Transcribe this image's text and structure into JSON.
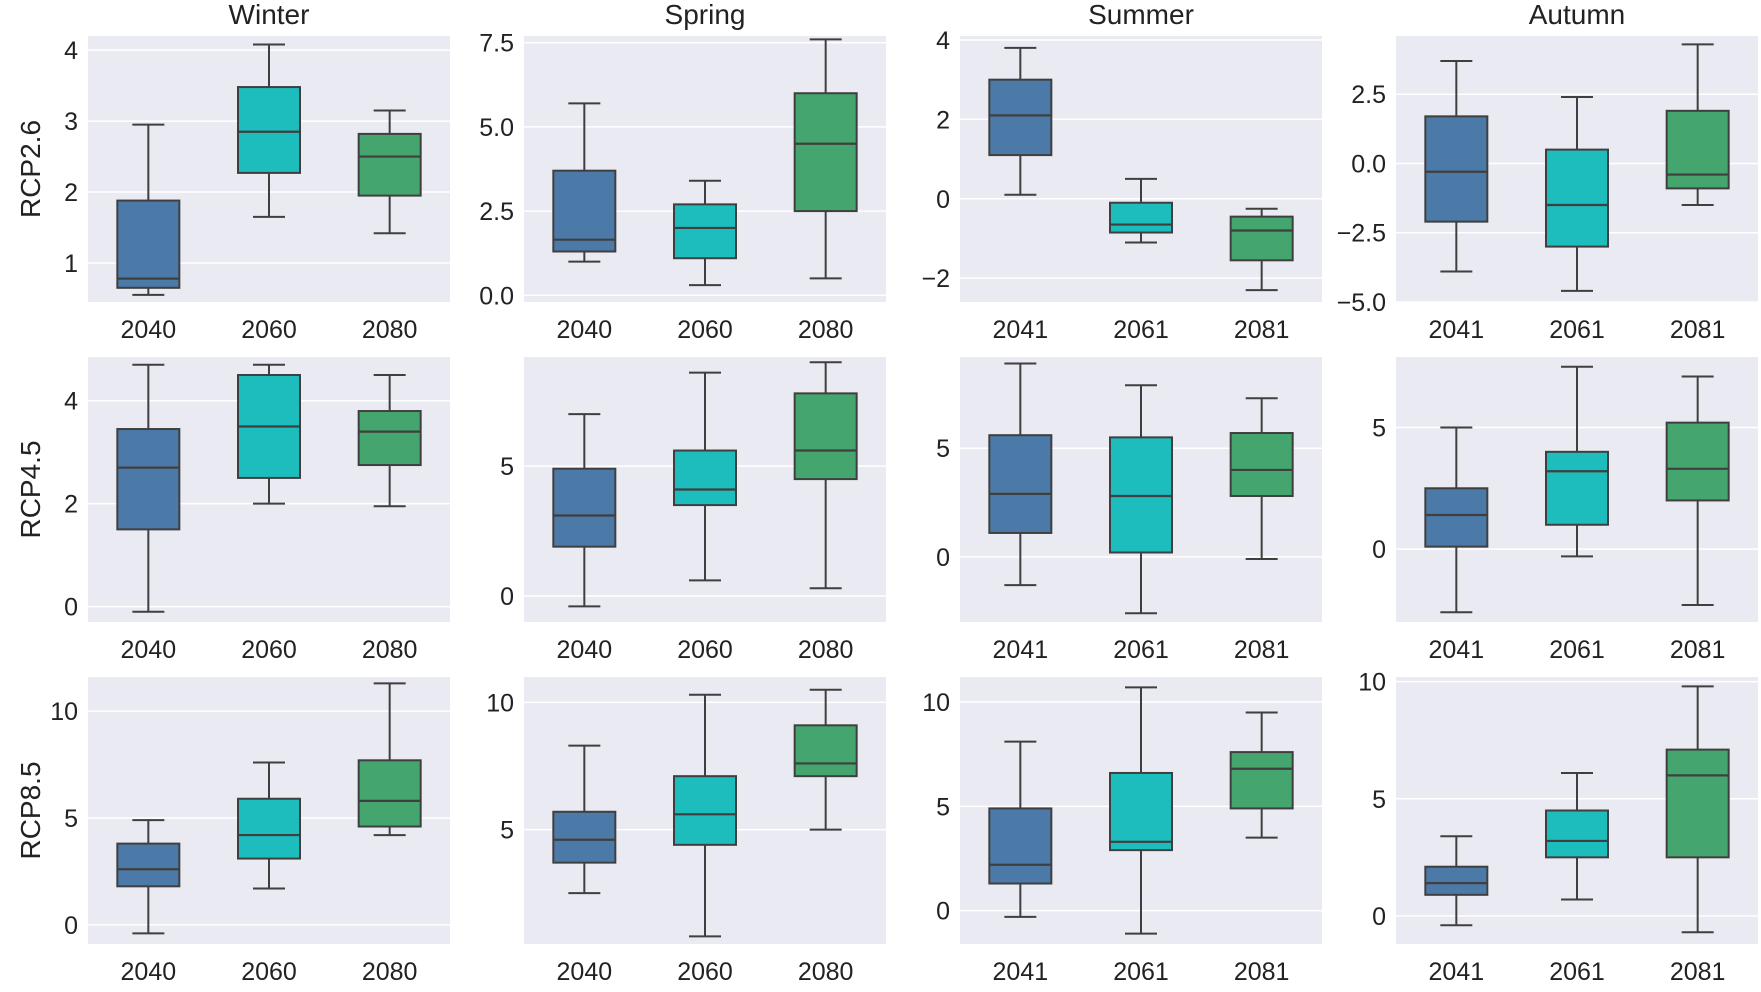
{
  "chart_data": {
    "type": "box",
    "columns": [
      "Winter",
      "Spring",
      "Summer",
      "Autumn"
    ],
    "rows": [
      "RCP2.6",
      "RCP4.5",
      "RCP8.5"
    ],
    "colors": [
      "#4c7aa8",
      "#1dbdbd",
      "#44a56e"
    ],
    "background": "#eaeaf2",
    "grid": true,
    "panels": [
      {
        "row": 0,
        "col": 0,
        "ylim": [
          0.45,
          4.2
        ],
        "yticks": [
          1,
          2,
          3,
          4
        ],
        "categories": [
          "2040",
          "2060",
          "2080"
        ],
        "boxes": [
          [
            0.55,
            0.65,
            0.78,
            1.88,
            2.95
          ],
          [
            1.65,
            2.27,
            2.85,
            3.48,
            4.08
          ],
          [
            1.42,
            1.95,
            2.5,
            2.82,
            3.15
          ]
        ]
      },
      {
        "row": 0,
        "col": 1,
        "ylim": [
          -0.2,
          7.7
        ],
        "yticks": [
          0.0,
          2.5,
          5.0,
          7.5
        ],
        "yticklabels": [
          "0.0",
          "2.5",
          "5.0",
          "7.5"
        ],
        "categories": [
          "2040",
          "2060",
          "2080"
        ],
        "boxes": [
          [
            1.0,
            1.3,
            1.65,
            3.7,
            5.7
          ],
          [
            0.3,
            1.1,
            2.0,
            2.7,
            3.4
          ],
          [
            0.5,
            2.5,
            4.5,
            6.0,
            7.6
          ]
        ]
      },
      {
        "row": 0,
        "col": 2,
        "ylim": [
          -2.6,
          4.1
        ],
        "yticks": [
          -2,
          0,
          2,
          4
        ],
        "yticklabels": [
          "−2",
          "0",
          "2",
          "4"
        ],
        "categories": [
          "2041",
          "2061",
          "2081"
        ],
        "boxes": [
          [
            0.1,
            1.1,
            2.1,
            3.0,
            3.8
          ],
          [
            -1.1,
            -0.85,
            -0.65,
            -0.1,
            0.5
          ],
          [
            -2.3,
            -1.55,
            -0.8,
            -0.45,
            -0.25
          ]
        ]
      },
      {
        "row": 0,
        "col": 3,
        "ylim": [
          -5.0,
          4.6
        ],
        "yticks": [
          -5.0,
          -2.5,
          0.0,
          2.5
        ],
        "yticklabels": [
          "−5.0",
          "−2.5",
          "0.0",
          "2.5"
        ],
        "categories": [
          "2041",
          "2061",
          "2081"
        ],
        "boxes": [
          [
            -3.9,
            -2.1,
            -0.3,
            1.7,
            3.7
          ],
          [
            -4.6,
            -3.0,
            -1.5,
            0.5,
            2.4
          ],
          [
            -1.5,
            -0.9,
            -0.4,
            1.9,
            4.3
          ]
        ]
      },
      {
        "row": 1,
        "col": 0,
        "ylim": [
          -0.3,
          4.85
        ],
        "yticks": [
          0,
          2,
          4
        ],
        "categories": [
          "2040",
          "2060",
          "2080"
        ],
        "boxes": [
          [
            -0.1,
            1.5,
            2.7,
            3.45,
            4.7
          ],
          [
            2.0,
            2.5,
            3.5,
            4.5,
            4.7
          ],
          [
            1.95,
            2.75,
            3.4,
            3.8,
            4.5
          ]
        ]
      },
      {
        "row": 1,
        "col": 1,
        "ylim": [
          -1.0,
          9.2
        ],
        "yticks": [
          0,
          5
        ],
        "categories": [
          "2040",
          "2060",
          "2080"
        ],
        "boxes": [
          [
            -0.4,
            1.9,
            3.1,
            4.9,
            7.0
          ],
          [
            0.6,
            3.5,
            4.1,
            5.6,
            8.6
          ],
          [
            0.3,
            4.5,
            5.6,
            7.8,
            9.0
          ]
        ]
      },
      {
        "row": 1,
        "col": 2,
        "ylim": [
          -3.0,
          9.2
        ],
        "yticks": [
          0,
          5
        ],
        "categories": [
          "2041",
          "2061",
          "2081"
        ],
        "boxes": [
          [
            -1.3,
            1.1,
            2.9,
            5.6,
            8.9
          ],
          [
            -2.6,
            0.2,
            2.8,
            5.5,
            7.9
          ],
          [
            -0.1,
            2.8,
            4.0,
            5.7,
            7.3
          ]
        ]
      },
      {
        "row": 1,
        "col": 3,
        "ylim": [
          -3.0,
          7.9
        ],
        "yticks": [
          0,
          5
        ],
        "categories": [
          "2041",
          "2061",
          "2081"
        ],
        "boxes": [
          [
            -2.6,
            0.1,
            1.4,
            2.5,
            5.0
          ],
          [
            -0.3,
            1.0,
            3.2,
            4.0,
            7.5
          ],
          [
            -2.3,
            2.0,
            3.3,
            5.2,
            7.1
          ]
        ]
      },
      {
        "row": 2,
        "col": 0,
        "ylim": [
          -0.9,
          11.6
        ],
        "yticks": [
          0,
          5,
          10
        ],
        "categories": [
          "2040",
          "2060",
          "2080"
        ],
        "boxes": [
          [
            -0.4,
            1.8,
            2.6,
            3.8,
            4.9
          ],
          [
            1.7,
            3.1,
            4.2,
            5.9,
            7.6
          ],
          [
            4.2,
            4.6,
            5.8,
            7.7,
            11.3
          ]
        ]
      },
      {
        "row": 2,
        "col": 1,
        "ylim": [
          0.5,
          11.0
        ],
        "yticks": [
          5,
          10
        ],
        "categories": [
          "2040",
          "2060",
          "2080"
        ],
        "boxes": [
          [
            2.5,
            3.7,
            4.6,
            5.7,
            8.3
          ],
          [
            0.8,
            4.4,
            5.6,
            7.1,
            10.3
          ],
          [
            5.0,
            7.1,
            7.6,
            9.1,
            10.5
          ]
        ]
      },
      {
        "row": 2,
        "col": 2,
        "ylim": [
          -1.6,
          11.2
        ],
        "yticks": [
          0,
          5,
          10
        ],
        "categories": [
          "2041",
          "2061",
          "2081"
        ],
        "boxes": [
          [
            -0.3,
            1.3,
            2.2,
            4.9,
            8.1
          ],
          [
            -1.1,
            2.9,
            3.3,
            6.6,
            10.7
          ],
          [
            3.5,
            4.9,
            6.8,
            7.6,
            9.5
          ]
        ]
      },
      {
        "row": 2,
        "col": 3,
        "ylim": [
          -1.2,
          10.2
        ],
        "yticks": [
          0,
          5,
          10
        ],
        "categories": [
          "2041",
          "2061",
          "2081"
        ],
        "boxes": [
          [
            -0.4,
            0.9,
            1.4,
            2.1,
            3.4
          ],
          [
            0.7,
            2.5,
            3.2,
            4.5,
            6.1
          ],
          [
            -0.7,
            2.5,
            6.0,
            7.1,
            9.8
          ]
        ]
      }
    ]
  }
}
